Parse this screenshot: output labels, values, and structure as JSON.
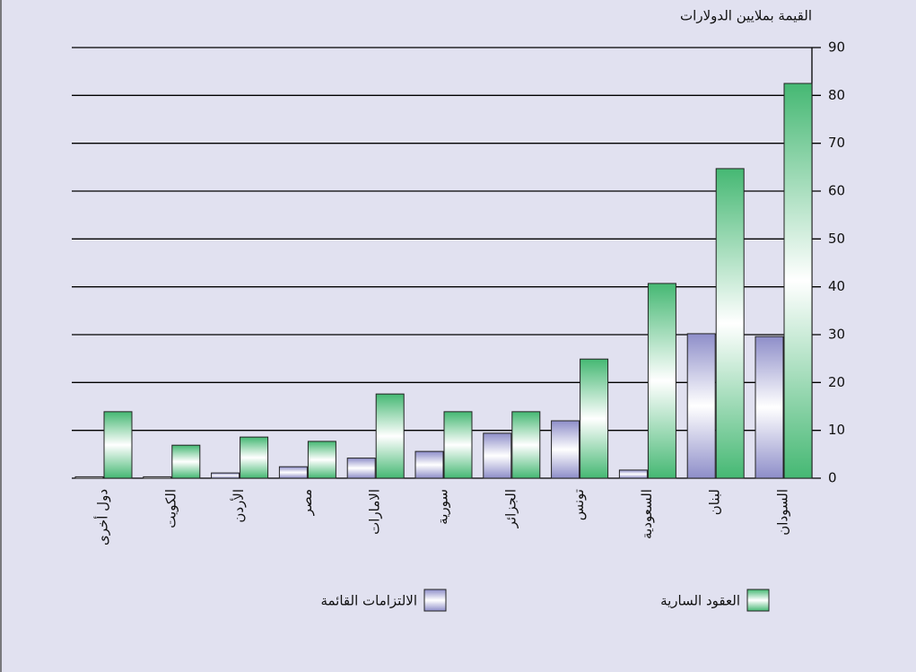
{
  "chart_data": {
    "type": "bar",
    "y_label": "القيمة بملايين الدولارات",
    "categories": [
      "دول أخرى",
      "الكويت",
      "الأردن",
      "مصر",
      "الامارات",
      "سورية",
      "الجزائر",
      "تونس",
      "السعودية",
      "لبنان",
      "السودان"
    ],
    "series": [
      {
        "name": "الالتزامات القائمة",
        "color": "#8e8ec9",
        "values": [
          0.3,
          0.3,
          1.1,
          2.4,
          4.2,
          5.6,
          9.4,
          12,
          1.7,
          30.2,
          29.6
        ]
      },
      {
        "name": "العقود السارية",
        "color": "#45b873",
        "values": [
          13.9,
          6.9,
          8.6,
          7.7,
          17.6,
          13.9,
          13.9,
          24.9,
          40.7,
          64.7,
          82.5
        ]
      }
    ],
    "ylim": [
      0,
      90
    ],
    "yticks": [
      0,
      10,
      20,
      30,
      40,
      50,
      60,
      70,
      80,
      90
    ],
    "grid": true,
    "y_axis_side": "right"
  }
}
